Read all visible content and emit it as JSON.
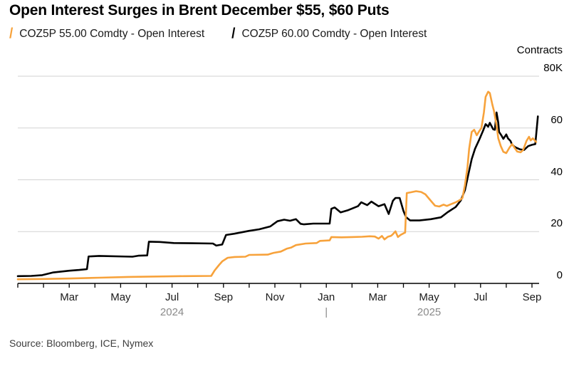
{
  "header": {
    "title": "Open Interest Surges in Brent December $55, $60 Puts"
  },
  "legend": [
    {
      "marker": "/",
      "label": "COZ5P 55.00 Comdty - Open Interest",
      "color": "#F7A23B"
    },
    {
      "marker": "/",
      "label": "COZ5P 60.00 Comdty - Open Interest",
      "color": "#000000"
    }
  ],
  "source": "Source: Bloomberg, ICE, Nymex",
  "colors": {
    "accent_orange": "#F7A23B",
    "series_black": "#000000",
    "grid": "#d2d2d2",
    "axis": "#000000",
    "year_label": "#8a8a8a"
  },
  "chart_data": {
    "type": "line",
    "title": "Open Interest Surges in Brent December $55, $60 Puts",
    "unit_label": "Contracts",
    "ylabel": "Contracts",
    "values_unit": "thousands of contracts (K)",
    "ylim": [
      0,
      80
    ],
    "grid": true,
    "legend_position": "top",
    "y_ticks": [
      {
        "value": 0,
        "label": "0"
      },
      {
        "value": 20,
        "label": "20"
      },
      {
        "value": 40,
        "label": "40"
      },
      {
        "value": 60,
        "label": "60"
      },
      {
        "value": 80,
        "label": "80K"
      }
    ],
    "x_range_months": [
      "2024-01",
      "2025-09"
    ],
    "x_ticks": [
      {
        "month": "2024-03",
        "label": "Mar"
      },
      {
        "month": "2024-05",
        "label": "May"
      },
      {
        "month": "2024-07",
        "label": "Jul"
      },
      {
        "month": "2024-09",
        "label": "Sep"
      },
      {
        "month": "2024-11",
        "label": "Nov"
      },
      {
        "month": "2025-01",
        "label": "Jan"
      },
      {
        "month": "2025-03",
        "label": "Mar"
      },
      {
        "month": "2025-05",
        "label": "May"
      },
      {
        "month": "2025-07",
        "label": "Jul"
      },
      {
        "month": "2025-09",
        "label": "Sep"
      }
    ],
    "year_labels": [
      {
        "label": "2024",
        "month": "2024-07"
      },
      {
        "label": "|",
        "month": "2025-01"
      },
      {
        "label": "2025",
        "month": "2025-05"
      }
    ],
    "series": [
      {
        "name": "COZ5P 55.00 Comdty - Open Interest",
        "color": "#F7A23B",
        "points": [
          [
            "2024-01-01",
            1.6
          ],
          [
            "2024-01-30",
            1.7
          ],
          [
            "2024-03-03",
            1.9
          ],
          [
            "2024-04-06",
            2.2
          ],
          [
            "2024-05-10",
            2.5
          ],
          [
            "2024-06-21",
            2.7
          ],
          [
            "2024-07-16",
            2.8
          ],
          [
            "2024-08-17",
            2.9
          ],
          [
            "2024-08-21",
            5.0
          ],
          [
            "2024-08-26",
            7.0
          ],
          [
            "2024-08-30",
            8.5
          ],
          [
            "2024-09-06",
            9.9
          ],
          [
            "2024-09-14",
            10.2
          ],
          [
            "2024-09-27",
            10.3
          ],
          [
            "2024-10-01",
            11.0
          ],
          [
            "2024-10-23",
            11.1
          ],
          [
            "2024-10-30",
            11.8
          ],
          [
            "2024-11-08",
            12.3
          ],
          [
            "2024-11-15",
            13.4
          ],
          [
            "2024-11-20",
            13.8
          ],
          [
            "2024-11-26",
            14.8
          ],
          [
            "2024-12-07",
            15.4
          ],
          [
            "2024-12-20",
            15.6
          ],
          [
            "2024-12-24",
            16.4
          ],
          [
            "2025-01-05",
            16.6
          ],
          [
            "2025-01-07",
            17.9
          ],
          [
            "2025-01-19",
            17.8
          ],
          [
            "2025-02-01",
            17.9
          ],
          [
            "2025-02-13",
            18.0
          ],
          [
            "2025-02-22",
            18.2
          ],
          [
            "2025-02-28",
            18.1
          ],
          [
            "2025-03-02",
            17.3
          ],
          [
            "2025-03-06",
            18.3
          ],
          [
            "2025-03-09",
            17.0
          ],
          [
            "2025-03-13",
            18.0
          ],
          [
            "2025-03-17",
            18.4
          ],
          [
            "2025-03-19",
            19.0
          ],
          [
            "2025-03-22",
            20.1
          ],
          [
            "2025-03-25",
            17.9
          ],
          [
            "2025-03-28",
            18.7
          ],
          [
            "2025-04-02",
            19.5
          ],
          [
            "2025-04-03",
            19.6
          ],
          [
            "2025-04-05",
            34.9
          ],
          [
            "2025-04-10",
            35.2
          ],
          [
            "2025-04-16",
            35.6
          ],
          [
            "2025-04-22",
            35.3
          ],
          [
            "2025-04-27",
            34.4
          ],
          [
            "2025-05-03",
            31.9
          ],
          [
            "2025-05-08",
            30.0
          ],
          [
            "2025-05-13",
            29.7
          ],
          [
            "2025-05-18",
            30.4
          ],
          [
            "2025-05-22",
            29.9
          ],
          [
            "2025-05-27",
            30.6
          ],
          [
            "2025-06-02",
            31.3
          ],
          [
            "2025-06-07",
            32.2
          ],
          [
            "2025-06-10",
            33.0
          ],
          [
            "2025-06-13",
            38.0
          ],
          [
            "2025-06-16",
            45.0
          ],
          [
            "2025-06-18",
            52.0
          ],
          [
            "2025-06-21",
            58.5
          ],
          [
            "2025-06-24",
            59.3
          ],
          [
            "2025-06-27",
            57.2
          ],
          [
            "2025-06-30",
            58.8
          ],
          [
            "2025-07-02",
            60.0
          ],
          [
            "2025-07-05",
            66.0
          ],
          [
            "2025-07-07",
            72.0
          ],
          [
            "2025-07-10",
            74.0
          ],
          [
            "2025-07-12",
            73.5
          ],
          [
            "2025-07-15",
            69.0
          ],
          [
            "2025-07-17",
            66.5
          ],
          [
            "2025-07-20",
            61.0
          ],
          [
            "2025-07-22",
            56.0
          ],
          [
            "2025-07-25",
            53.0
          ],
          [
            "2025-07-28",
            50.8
          ],
          [
            "2025-08-01",
            50.3
          ],
          [
            "2025-08-05",
            52.5
          ],
          [
            "2025-08-08",
            53.8
          ],
          [
            "2025-08-11",
            52.3
          ],
          [
            "2025-08-14",
            50.9
          ],
          [
            "2025-08-18",
            50.6
          ],
          [
            "2025-08-21",
            51.5
          ],
          [
            "2025-08-25",
            55.0
          ],
          [
            "2025-08-28",
            56.6
          ],
          [
            "2025-08-30",
            55.2
          ],
          [
            "2025-09-02",
            56.0
          ],
          [
            "2025-09-06",
            54.6
          ]
        ]
      },
      {
        "name": "COZ5P 60.00 Comdty - Open Interest",
        "color": "#000000",
        "points": [
          [
            "2024-01-01",
            2.8
          ],
          [
            "2024-01-17",
            2.9
          ],
          [
            "2024-01-30",
            3.2
          ],
          [
            "2024-02-12",
            4.2
          ],
          [
            "2024-03-01",
            4.9
          ],
          [
            "2024-03-13",
            5.2
          ],
          [
            "2024-03-22",
            5.5
          ],
          [
            "2024-03-24",
            10.4
          ],
          [
            "2024-04-06",
            10.6
          ],
          [
            "2024-05-15",
            10.3
          ],
          [
            "2024-05-22",
            10.7
          ],
          [
            "2024-06-02",
            10.8
          ],
          [
            "2024-06-04",
            16.1
          ],
          [
            "2024-06-17",
            16.0
          ],
          [
            "2024-07-03",
            15.6
          ],
          [
            "2024-07-24",
            15.5
          ],
          [
            "2024-08-19",
            15.4
          ],
          [
            "2024-08-23",
            14.6
          ],
          [
            "2024-08-30",
            15.0
          ],
          [
            "2024-09-04",
            18.7
          ],
          [
            "2024-09-14",
            19.2
          ],
          [
            "2024-10-01",
            20.3
          ],
          [
            "2024-10-13",
            20.9
          ],
          [
            "2024-10-26",
            22.0
          ],
          [
            "2024-11-04",
            24.0
          ],
          [
            "2024-11-12",
            24.6
          ],
          [
            "2024-11-19",
            24.2
          ],
          [
            "2024-11-26",
            24.8
          ],
          [
            "2024-12-01",
            23.0
          ],
          [
            "2024-12-05",
            22.8
          ],
          [
            "2024-12-16",
            23.1
          ],
          [
            "2025-01-05",
            23.1
          ],
          [
            "2025-01-07",
            28.8
          ],
          [
            "2025-01-11",
            29.3
          ],
          [
            "2025-01-18",
            27.4
          ],
          [
            "2025-01-27",
            28.3
          ],
          [
            "2025-02-08",
            29.8
          ],
          [
            "2025-02-12",
            31.3
          ],
          [
            "2025-02-19",
            30.2
          ],
          [
            "2025-02-24",
            31.6
          ],
          [
            "2025-03-02",
            29.8
          ],
          [
            "2025-03-09",
            30.6
          ],
          [
            "2025-03-14",
            26.8
          ],
          [
            "2025-03-19",
            31.9
          ],
          [
            "2025-03-22",
            33.0
          ],
          [
            "2025-03-27",
            33.0
          ],
          [
            "2025-04-01",
            28.0
          ],
          [
            "2025-04-04",
            25.6
          ],
          [
            "2025-04-09",
            24.3
          ],
          [
            "2025-04-20",
            24.3
          ],
          [
            "2025-05-03",
            24.8
          ],
          [
            "2025-05-15",
            25.5
          ],
          [
            "2025-05-23",
            27.5
          ],
          [
            "2025-06-02",
            29.5
          ],
          [
            "2025-06-08",
            32.0
          ],
          [
            "2025-06-13",
            36.0
          ],
          [
            "2025-06-17",
            42.0
          ],
          [
            "2025-06-21",
            48.0
          ],
          [
            "2025-06-25",
            52.0
          ],
          [
            "2025-06-30",
            55.5
          ],
          [
            "2025-07-04",
            59.0
          ],
          [
            "2025-07-07",
            61.5
          ],
          [
            "2025-07-10",
            60.5
          ],
          [
            "2025-07-12",
            62.0
          ],
          [
            "2025-07-16",
            59.5
          ],
          [
            "2025-07-18",
            59.3
          ],
          [
            "2025-07-20",
            66.0
          ],
          [
            "2025-07-22",
            62.0
          ],
          [
            "2025-07-23",
            58.5
          ],
          [
            "2025-07-26",
            57.0
          ],
          [
            "2025-07-28",
            55.8
          ],
          [
            "2025-08-01",
            57.5
          ],
          [
            "2025-08-03",
            56.0
          ],
          [
            "2025-08-06",
            55.0
          ],
          [
            "2025-08-08",
            53.5
          ],
          [
            "2025-08-12",
            52.5
          ],
          [
            "2025-08-17",
            51.8
          ],
          [
            "2025-08-22",
            51.5
          ],
          [
            "2025-08-27",
            53.0
          ],
          [
            "2025-09-01",
            53.5
          ],
          [
            "2025-09-05",
            53.8
          ],
          [
            "2025-09-08",
            64.5
          ]
        ]
      }
    ]
  }
}
